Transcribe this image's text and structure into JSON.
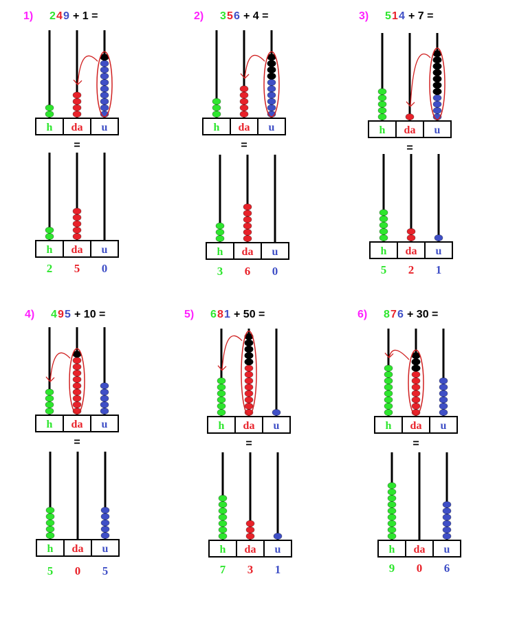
{
  "colors": {
    "hundreds": "#2ee62e",
    "tens": "#e8222a",
    "units": "#3f4fc6",
    "number_label": "#ff20ff",
    "carry_bead": "#000000",
    "loop": "#d02020"
  },
  "place_labels": {
    "h": "h",
    "da": "da",
    "u": "u"
  },
  "equals": "=",
  "exercises": [
    {
      "number": "1)",
      "digits": [
        "2",
        "4",
        "9"
      ],
      "operation": "+ 1 =",
      "start_beads": {
        "h": 2,
        "da": 4,
        "u": 9
      },
      "added_beads": {
        "h": 0,
        "da": 0,
        "u": 1
      },
      "carry_from": "u",
      "result_beads": {
        "h": 2,
        "da": 5,
        "u": 0
      },
      "result": [
        "2",
        "5",
        "0"
      ]
    },
    {
      "number": "2)",
      "digits": [
        "3",
        "5",
        "6"
      ],
      "operation": "+ 4 =",
      "start_beads": {
        "h": 3,
        "da": 5,
        "u": 6
      },
      "added_beads": {
        "h": 0,
        "da": 0,
        "u": 4
      },
      "carry_from": "u",
      "result_beads": {
        "h": 3,
        "da": 6,
        "u": 0
      },
      "result": [
        "3",
        "6",
        "0"
      ]
    },
    {
      "number": "3)",
      "digits": [
        "5",
        "1",
        "4"
      ],
      "operation": "+ 7 =",
      "start_beads": {
        "h": 5,
        "da": 1,
        "u": 4
      },
      "added_beads": {
        "h": 0,
        "da": 0,
        "u": 7
      },
      "carry_from": "u",
      "result_beads": {
        "h": 5,
        "da": 2,
        "u": 1
      },
      "result": [
        "5",
        "2",
        "1"
      ]
    },
    {
      "number": "4)",
      "digits": [
        "4",
        "9",
        "5"
      ],
      "operation": "+ 10 =",
      "start_beads": {
        "h": 4,
        "da": 9,
        "u": 5
      },
      "added_beads": {
        "h": 0,
        "da": 1,
        "u": 0
      },
      "carry_from": "da",
      "result_beads": {
        "h": 5,
        "da": 0,
        "u": 5
      },
      "result": [
        "5",
        "0",
        "5"
      ]
    },
    {
      "number": "5)",
      "digits": [
        "6",
        "8",
        "1"
      ],
      "operation": "+ 50 =",
      "start_beads": {
        "h": 6,
        "da": 8,
        "u": 1
      },
      "added_beads": {
        "h": 0,
        "da": 5,
        "u": 0
      },
      "carry_from": "da",
      "result_beads": {
        "h": 7,
        "da": 3,
        "u": 1
      },
      "result": [
        "7",
        "3",
        "1"
      ]
    },
    {
      "number": "6)",
      "digits": [
        "8",
        "7",
        "6"
      ],
      "operation": "+ 30 =",
      "start_beads": {
        "h": 8,
        "da": 7,
        "u": 6
      },
      "added_beads": {
        "h": 0,
        "da": 3,
        "u": 0
      },
      "carry_from": "da",
      "result_beads": {
        "h": 9,
        "da": 0,
        "u": 6
      },
      "result": [
        "9",
        "0",
        "6"
      ]
    }
  ]
}
